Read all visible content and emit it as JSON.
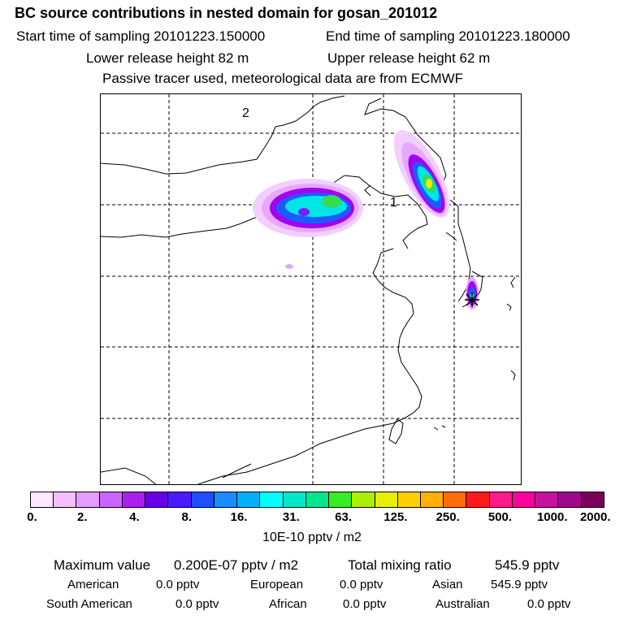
{
  "title": "BC  source contributions in nested domain for gosan_201012",
  "header": {
    "start_label": "Start time of sampling 20101223.150000",
    "end_label": "End time of sampling 20101223.180000",
    "lower_label": "Lower release height   82 m",
    "upper_label": "Upper release height   62 m",
    "tracer_label": "Passive tracer used, meteorological data are from ECMWF"
  },
  "map": {
    "labels": {
      "marker1": "1",
      "marker2": "2"
    },
    "receptor": "gosan",
    "plume_colors": [
      "#e7a8ff",
      "#a300f0",
      "#1e5bff",
      "#00e6e6",
      "#33dd55",
      "#e6f000"
    ]
  },
  "colorbar": {
    "colors": [
      "#ffe6ff",
      "#f5c0ff",
      "#e59cff",
      "#c966ff",
      "#aa1ff0",
      "#6600e6",
      "#4a1aff",
      "#1f4dff",
      "#1a8cff",
      "#00b0ff",
      "#00ffff",
      "#00e6c8",
      "#00e68c",
      "#33ee22",
      "#aaf000",
      "#e6f000",
      "#ffd000",
      "#ffb000",
      "#ff7000",
      "#ff1a1a",
      "#ff1a8c",
      "#ff00a0",
      "#c810a0",
      "#a0088c",
      "#78005a"
    ],
    "ticks": [
      "0.",
      "2.",
      "4.",
      "8.",
      "16.",
      "31.",
      "63.",
      "125.",
      "250.",
      "500.",
      "1000.",
      "2000."
    ],
    "unit": "10E-10 pptv / m2"
  },
  "summary": {
    "max_label": "Maximum value",
    "max_value": "0.200E-07 pptv / m2",
    "total_label": "Total mixing ratio",
    "total_value": "545.9 pptv"
  },
  "regions": [
    {
      "name": "American",
      "value": "0.0 pptv"
    },
    {
      "name": "European",
      "value": "0.0 pptv"
    },
    {
      "name": "Asian",
      "value": "545.9 pptv"
    },
    {
      "name": "South American",
      "value": "0.0 pptv"
    },
    {
      "name": "African",
      "value": "0.0 pptv"
    },
    {
      "name": "Australian",
      "value": "0.0 pptv"
    }
  ]
}
